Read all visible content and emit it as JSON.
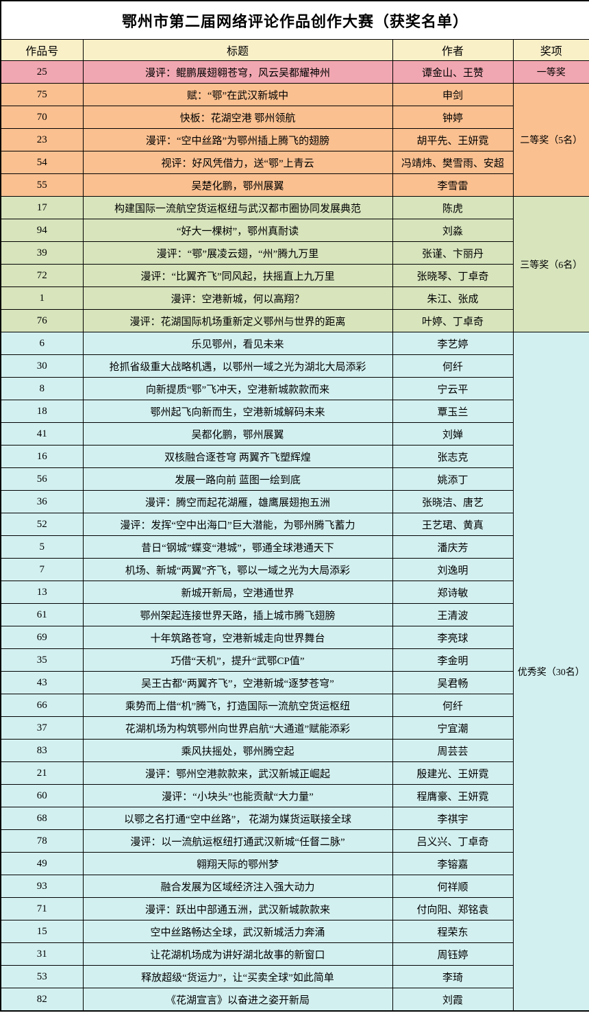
{
  "title": "鄂州市第二届网络评论作品创作大赛（获奖名单）",
  "columns": [
    "作品号",
    "标题",
    "作者",
    "奖项"
  ],
  "colors": {
    "table_border": "#000000",
    "title_bg": "#FFFFFF",
    "header_bg": "#FAF0C8",
    "first_prize_bg": "#F1A7B1",
    "second_prize_bg": "#FAC090",
    "third_prize_bg": "#D7E4BC",
    "excellence_bg": "#D3F0F0"
  },
  "groups": [
    {
      "award": "一等奖",
      "color": "#F1A7B1",
      "rows": [
        {
          "id": "25",
          "title": "漫评：鲲鹏展翅翱苍穹，风云吴都耀神州",
          "author": "谭金山、王赞"
        }
      ]
    },
    {
      "award": "二等奖（5名）",
      "color": "#FAC090",
      "rows": [
        {
          "id": "75",
          "title": "赋：“鄂”在武汉新城中",
          "author": "申剑"
        },
        {
          "id": "70",
          "title": "快板：花湖空港 鄂州领航",
          "author": "钟婷"
        },
        {
          "id": "23",
          "title": "漫评：“空中丝路”为鄂州插上腾飞的翅膀",
          "author": "胡平先、王妍霓"
        },
        {
          "id": "54",
          "title": "视评：好风凭借力，送“鄂”上青云",
          "author": "冯靖炜、樊雪雨、安超"
        },
        {
          "id": "55",
          "title": "吴楚化鹏，鄂州展翼",
          "author": "李雪雷"
        }
      ]
    },
    {
      "award": "三等奖（6名）",
      "color": "#D7E4BC",
      "rows": [
        {
          "id": "17",
          "title": "构建国际一流航空货运枢纽与武汉都市圈协同发展典范",
          "author": "陈虎"
        },
        {
          "id": "94",
          "title": "“好大一棵树”，鄂州真耐读",
          "author": "刘淼"
        },
        {
          "id": "39",
          "title": "漫评：“鄂”展凌云翅，“州”腾九万里",
          "author": "张谨、卞丽丹"
        },
        {
          "id": "72",
          "title": "漫评：“比翼齐飞”同风起，扶摇直上九万里",
          "author": "张晓琴、丁卓奇"
        },
        {
          "id": "1",
          "title": "漫评：空港新城，何以高翔？",
          "author": "朱江、张成"
        },
        {
          "id": "76",
          "title": "漫评：花湖国际机场重新定义鄂州与世界的距离",
          "author": "叶婷、丁卓奇"
        }
      ]
    },
    {
      "award": "优秀奖（30名）",
      "color": "#D3F0F0",
      "rows": [
        {
          "id": "6",
          "title": "乐见鄂州，看见未来",
          "author": "李艺婷"
        },
        {
          "id": "30",
          "title": "抢抓省级重大战略机遇，以鄂州一域之光为湖北大局添彩",
          "author": "何纤"
        },
        {
          "id": "8",
          "title": "向新提质“鄂”飞冲天，空港新城款款而来",
          "author": "宁云平"
        },
        {
          "id": "18",
          "title": "鄂州起飞向新而生，空港新城解码未来",
          "author": "覃玉兰"
        },
        {
          "id": "41",
          "title": "吴都化鹏，鄂州展翼",
          "author": "刘婵"
        },
        {
          "id": "16",
          "title": "双核融合逐苍穹 两翼齐飞塑辉煌",
          "author": "张志克"
        },
        {
          "id": "56",
          "title": "发展一路向前 蓝图一绘到底",
          "author": "姚添丁"
        },
        {
          "id": "36",
          "title": "漫评：腾空而起花湖雁，雄鹰展翅抱五洲",
          "author": "张晓洁、唐艺"
        },
        {
          "id": "52",
          "title": "漫评：发挥“空中出海口”巨大潜能，为鄂州腾飞蓄力",
          "author": "王艺珺、黄真"
        },
        {
          "id": "5",
          "title": "昔日“钢城”蝶变“港城”，鄂通全球港通天下",
          "author": "潘庆芳"
        },
        {
          "id": "7",
          "title": "机场、新城“两翼”齐飞，鄂以一域之光为大局添彩",
          "author": "刘逸明"
        },
        {
          "id": "13",
          "title": "新城开新局，空港通世界",
          "author": "郑诗敏"
        },
        {
          "id": "61",
          "title": "鄂州架起连接世界天路，插上城市腾飞翅膀",
          "author": "王清波"
        },
        {
          "id": "69",
          "title": "十年筑路苍穹，空港新城走向世界舞台",
          "author": "李亮球"
        },
        {
          "id": "35",
          "title": "巧借“天机”，提升“武鄂CP值”",
          "author": "李金明"
        },
        {
          "id": "43",
          "title": "吴王古都“两翼齐飞”，空港新城“逐梦苍穹”",
          "author": "吴君畅"
        },
        {
          "id": "66",
          "title": "乘势而上借“机”腾飞，打造国际一流航空货运枢纽",
          "author": "何纤"
        },
        {
          "id": "37",
          "title": "花湖机场为构筑鄂州向世界启航“大通道”赋能添彩",
          "author": "宁宜潮"
        },
        {
          "id": "83",
          "title": "乘风扶摇处，鄂州腾空起",
          "author": "周芸芸"
        },
        {
          "id": "21",
          "title": "漫评：鄂州空港款款来，武汉新城正崛起",
          "author": "殷建光、王妍霓"
        },
        {
          "id": "60",
          "title": "漫评：“小块头”也能贡献“大力量”",
          "author": "程膺豪、王妍霓"
        },
        {
          "id": "68",
          "title": "以鄂之名打通“空中丝路”， 花湖为媒货运联接全球",
          "author": "李祺宇"
        },
        {
          "id": "78",
          "title": "漫评：以一流航运枢纽打通武汉新城“任督二脉”",
          "author": "吕义兴、丁卓奇"
        },
        {
          "id": "49",
          "title": "翱翔天际的鄂州梦",
          "author": "李镕嘉"
        },
        {
          "id": "93",
          "title": "融合发展为区域经济注入强大动力",
          "author": "何祥顺"
        },
        {
          "id": "71",
          "title": "漫评：跃出中部通五洲，武汉新城款款来",
          "author": "付向阳、郑铭袁"
        },
        {
          "id": "15",
          "title": "空中丝路畅达全球，武汉新城活力奔涌",
          "author": "程荣东"
        },
        {
          "id": "31",
          "title": "让花湖机场成为讲好湖北故事的新窗口",
          "author": "周钰婷"
        },
        {
          "id": "53",
          "title": "释放超级“货运力”，让“买卖全球”如此简单",
          "author": "李琦"
        },
        {
          "id": "82",
          "title": "《花湖宣言》以奋进之姿开新局",
          "author": "刘霞"
        }
      ]
    }
  ]
}
